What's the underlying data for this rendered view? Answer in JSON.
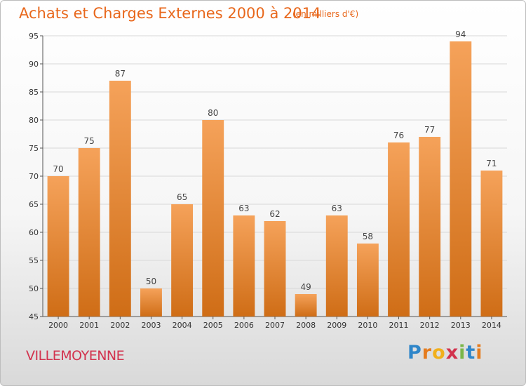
{
  "title": "Achats et Charges Externes 2000 à 2014",
  "subtitle": "(en milliers d'€)",
  "city": "VILLEMOYENNE",
  "logo": [
    "P",
    "r",
    "o",
    "x",
    "i",
    "t",
    "i"
  ],
  "colors": {
    "bar_top": "#f5a25a",
    "bar_bottom": "#cf6d16",
    "grid": "#d8d8d8",
    "title": "#e8671b"
  },
  "chart_data": {
    "type": "bar",
    "categories": [
      "2000",
      "2001",
      "2002",
      "2003",
      "2004",
      "2005",
      "2006",
      "2007",
      "2008",
      "2009",
      "2010",
      "2011",
      "2012",
      "2013",
      "2014"
    ],
    "values": [
      70,
      75,
      87,
      50,
      65,
      80,
      63,
      62,
      49,
      63,
      58,
      76,
      77,
      94,
      71
    ],
    "ylim": [
      45,
      95
    ],
    "yticks": [
      45,
      50,
      55,
      60,
      65,
      70,
      75,
      80,
      85,
      90,
      95
    ],
    "grid": true,
    "legend": "none"
  }
}
